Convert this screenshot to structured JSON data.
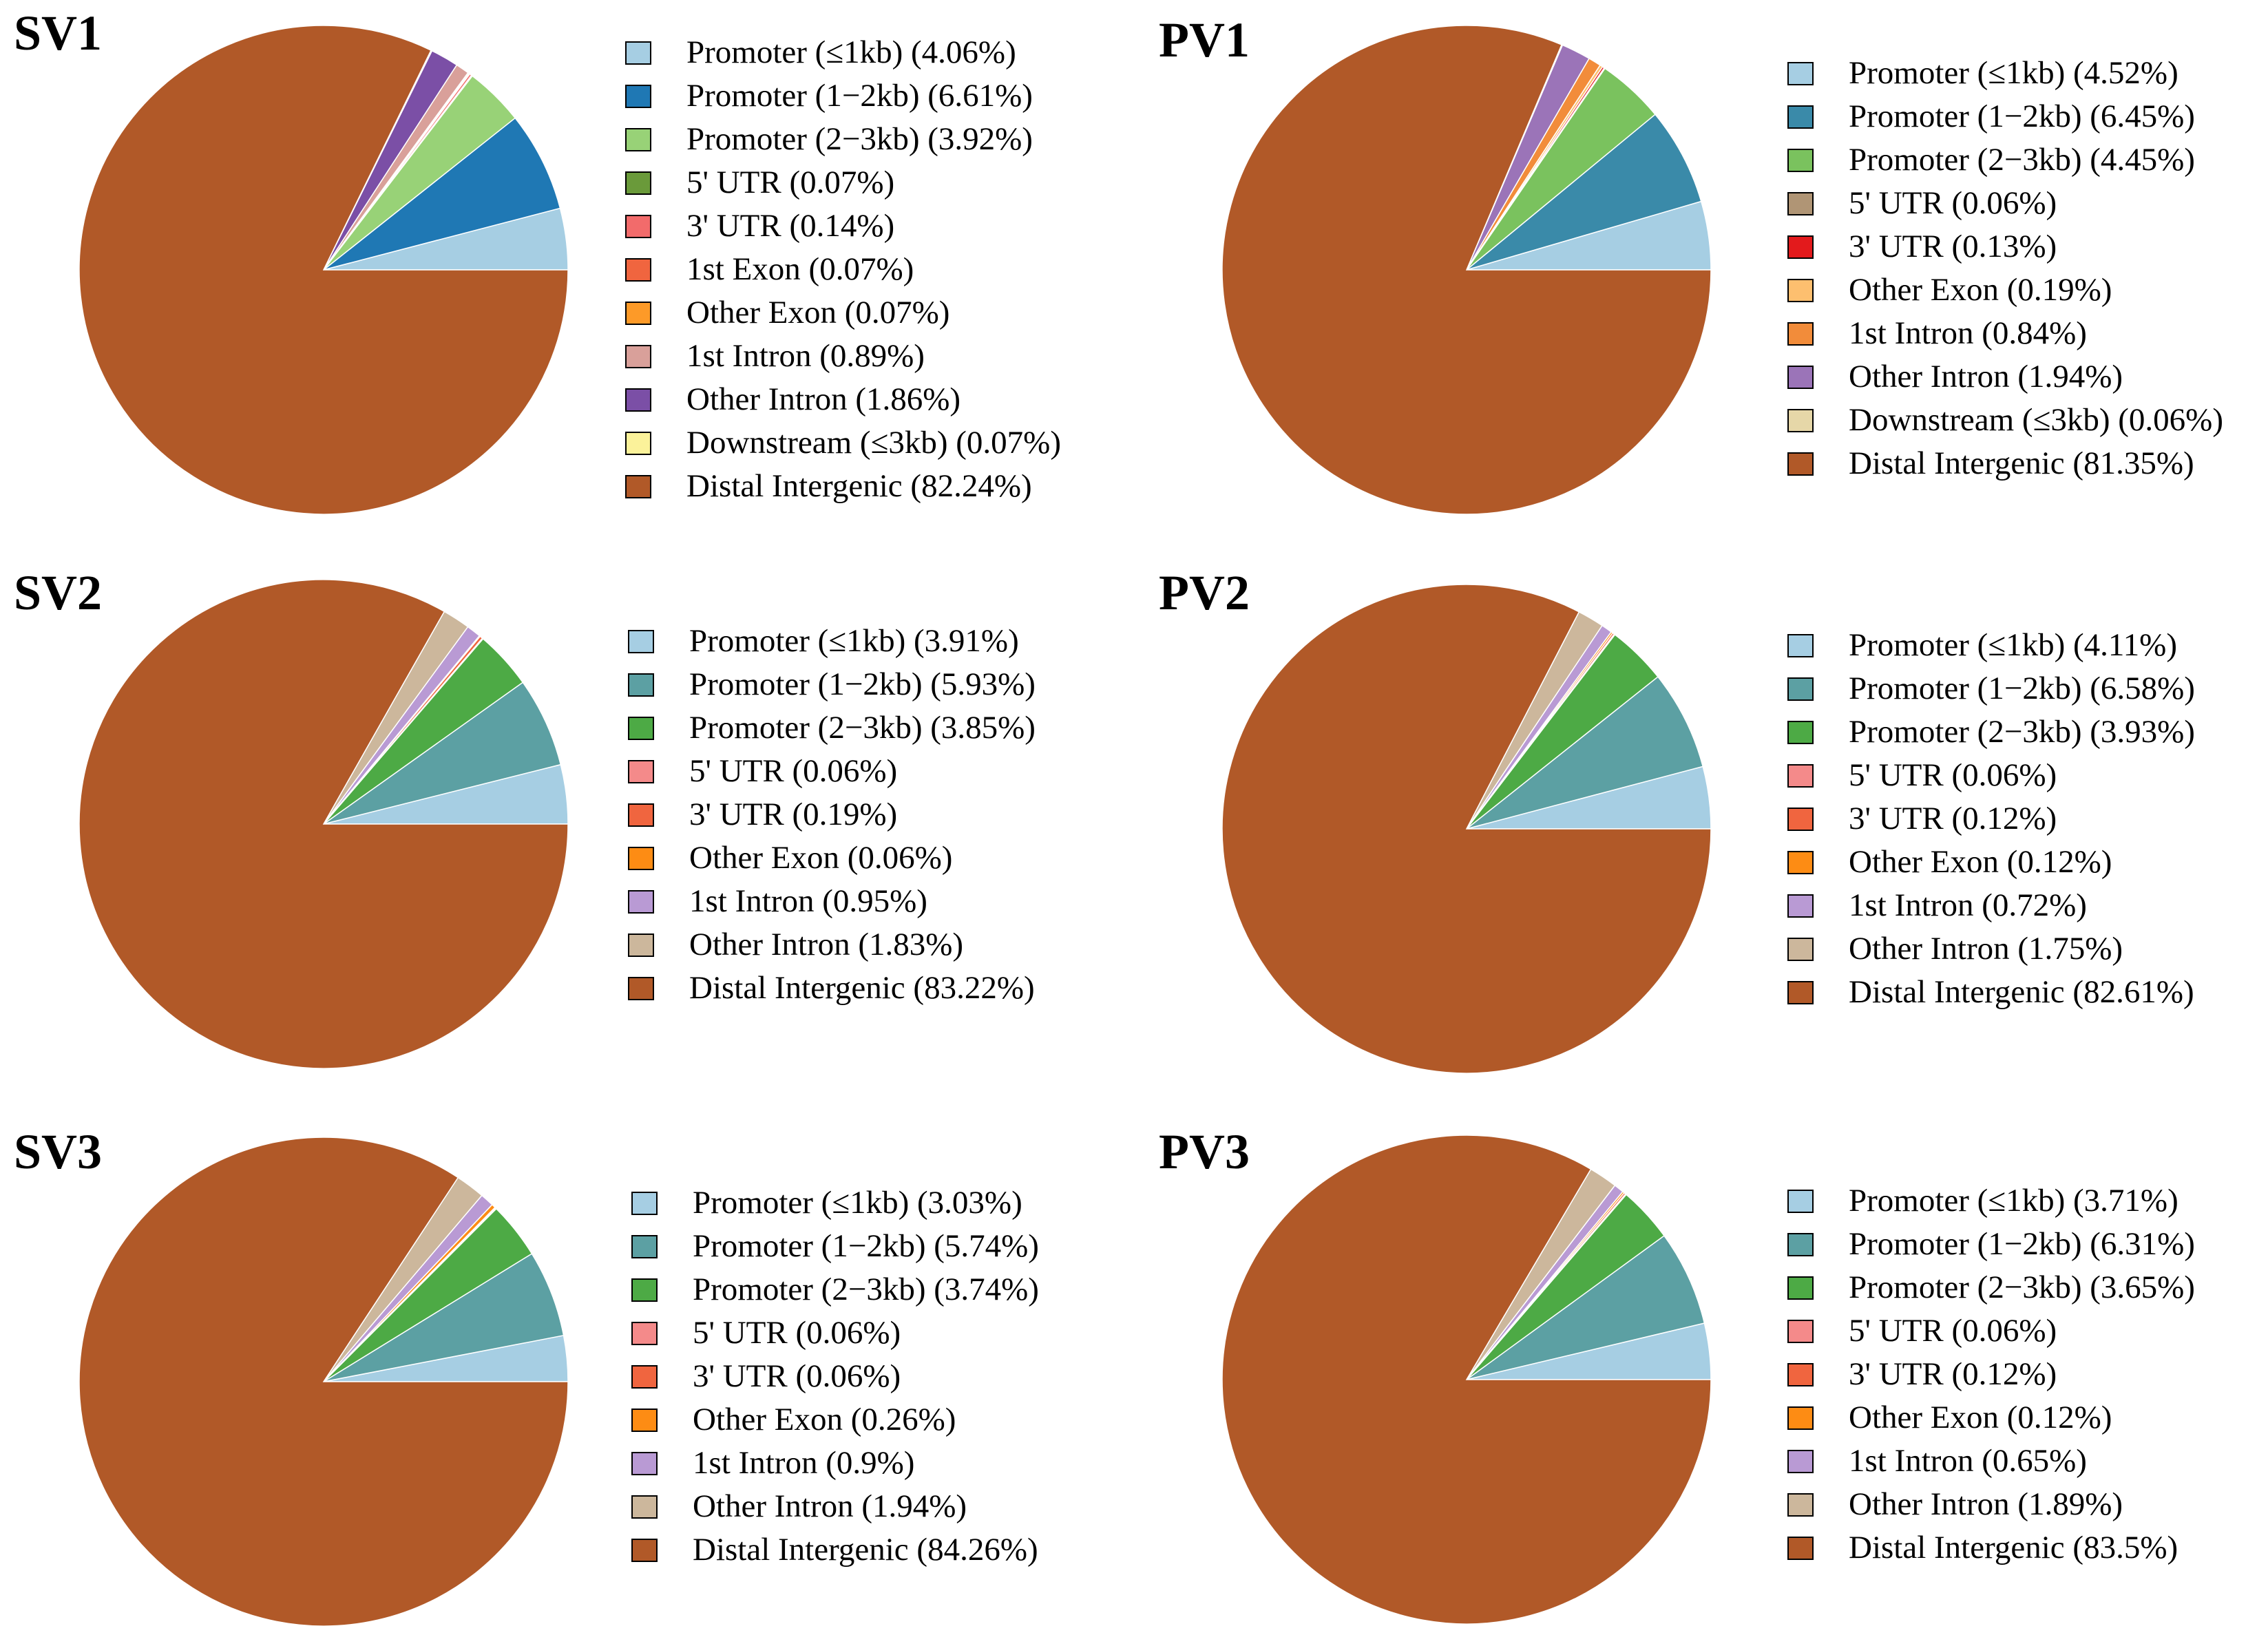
{
  "chart_data": [
    {
      "type": "pie",
      "title": "SV1",
      "slices": [
        {
          "label": "Promoter (≤1kb) (4.06%)",
          "name": "Promoter (≤1kb)",
          "value": 4.06,
          "color": "#a6cee3"
        },
        {
          "label": "Promoter (1−2kb) (6.61%)",
          "name": "Promoter (1−2kb)",
          "value": 6.61,
          "color": "#1f78b4"
        },
        {
          "label": "Promoter (2−3kb) (3.92%)",
          "name": "Promoter (2−3kb)",
          "value": 3.92,
          "color": "#98d277"
        },
        {
          "label": "5' UTR (0.07%)",
          "name": "5' UTR",
          "value": 0.07,
          "color": "#6a9a3a"
        },
        {
          "label": "3' UTR (0.14%)",
          "name": "3' UTR",
          "value": 0.14,
          "color": "#f26b6b"
        },
        {
          "label": "1st Exon (0.07%)",
          "name": "1st Exon",
          "value": 0.07,
          "color": "#f0653f"
        },
        {
          "label": "Other Exon (0.07%)",
          "name": "Other Exon",
          "value": 0.07,
          "color": "#fd9a28"
        },
        {
          "label": "1st Intron (0.89%)",
          "name": "1st Intron",
          "value": 0.89,
          "color": "#d9a09a"
        },
        {
          "label": "Other Intron (1.86%)",
          "name": "Other Intron",
          "value": 1.86,
          "color": "#7b4fa6"
        },
        {
          "label": "Downstream (≤3kb) (0.07%)",
          "name": "Downstream (≤3kb)",
          "value": 0.07,
          "color": "#fbf29a"
        },
        {
          "label": "Distal Intergenic (82.24%)",
          "name": "Distal Intergenic",
          "value": 82.24,
          "color": "#b15928"
        }
      ]
    },
    {
      "type": "pie",
      "title": "PV1",
      "slices": [
        {
          "label": "Promoter (≤1kb) (4.52%)",
          "name": "Promoter (≤1kb)",
          "value": 4.52,
          "color": "#a6cee3"
        },
        {
          "label": "Promoter (1−2kb) (6.45%)",
          "name": "Promoter (1−2kb)",
          "value": 6.45,
          "color": "#3a8aa9"
        },
        {
          "label": "Promoter (2−3kb) (4.45%)",
          "name": "Promoter (2−3kb)",
          "value": 4.45,
          "color": "#7ac25e"
        },
        {
          "label": "5' UTR (0.06%)",
          "name": "5' UTR",
          "value": 0.06,
          "color": "#b09575"
        },
        {
          "label": "3' UTR (0.13%)",
          "name": "3' UTR",
          "value": 0.13,
          "color": "#e31a1c"
        },
        {
          "label": "Other Exon (0.19%)",
          "name": "Other Exon",
          "value": 0.19,
          "color": "#fdbf6f"
        },
        {
          "label": "1st Intron (0.84%)",
          "name": "1st Intron",
          "value": 0.84,
          "color": "#f28c3a"
        },
        {
          "label": "Other Intron (1.94%)",
          "name": "Other Intron",
          "value": 1.94,
          "color": "#9b74b8"
        },
        {
          "label": "Downstream (≤3kb) (0.06%)",
          "name": "Downstream (≤3kb)",
          "value": 0.06,
          "color": "#e6d7a8"
        },
        {
          "label": "Distal Intergenic (81.35%)",
          "name": "Distal Intergenic",
          "value": 81.35,
          "color": "#b15928"
        }
      ]
    },
    {
      "type": "pie",
      "title": "SV2",
      "slices": [
        {
          "label": "Promoter (≤1kb) (3.91%)",
          "name": "Promoter (≤1kb)",
          "value": 3.91,
          "color": "#a6cee3"
        },
        {
          "label": "Promoter (1−2kb) (5.93%)",
          "name": "Promoter (1−2kb)",
          "value": 5.93,
          "color": "#5ca0a3"
        },
        {
          "label": "Promoter (2−3kb) (3.85%)",
          "name": "Promoter (2−3kb)",
          "value": 3.85,
          "color": "#4daa45"
        },
        {
          "label": "5' UTR (0.06%)",
          "name": "5' UTR",
          "value": 0.06,
          "color": "#f48a8a"
        },
        {
          "label": "3' UTR (0.19%)",
          "name": "3' UTR",
          "value": 0.19,
          "color": "#f0653f"
        },
        {
          "label": "Other Exon (0.06%)",
          "name": "Other Exon",
          "value": 0.06,
          "color": "#fd8c14"
        },
        {
          "label": "1st Intron (0.95%)",
          "name": "1st Intron",
          "value": 0.95,
          "color": "#b99ad4"
        },
        {
          "label": "Other Intron (1.83%)",
          "name": "Other Intron",
          "value": 1.83,
          "color": "#ccb79c"
        },
        {
          "label": "Distal Intergenic (83.22%)",
          "name": "Distal Intergenic",
          "value": 83.22,
          "color": "#b15928"
        }
      ]
    },
    {
      "type": "pie",
      "title": "PV2",
      "slices": [
        {
          "label": "Promoter (≤1kb) (4.11%)",
          "name": "Promoter (≤1kb)",
          "value": 4.11,
          "color": "#a6cee3"
        },
        {
          "label": "Promoter (1−2kb) (6.58%)",
          "name": "Promoter (1−2kb)",
          "value": 6.58,
          "color": "#5ca0a3"
        },
        {
          "label": "Promoter (2−3kb) (3.93%)",
          "name": "Promoter (2−3kb)",
          "value": 3.93,
          "color": "#4daa45"
        },
        {
          "label": "5' UTR (0.06%)",
          "name": "5' UTR",
          "value": 0.06,
          "color": "#f48a8a"
        },
        {
          "label": "3' UTR (0.12%)",
          "name": "3' UTR",
          "value": 0.12,
          "color": "#f0653f"
        },
        {
          "label": "Other Exon (0.12%)",
          "name": "Other Exon",
          "value": 0.12,
          "color": "#fd8c14"
        },
        {
          "label": "1st Intron (0.72%)",
          "name": "1st Intron",
          "value": 0.72,
          "color": "#b99ad4"
        },
        {
          "label": "Other Intron (1.75%)",
          "name": "Other Intron",
          "value": 1.75,
          "color": "#ccb79c"
        },
        {
          "label": "Distal Intergenic (82.61%)",
          "name": "Distal Intergenic",
          "value": 82.61,
          "color": "#b15928"
        }
      ]
    },
    {
      "type": "pie",
      "title": "SV3",
      "slices": [
        {
          "label": "Promoter (≤1kb) (3.03%)",
          "name": "Promoter (≤1kb)",
          "value": 3.03,
          "color": "#a6cee3"
        },
        {
          "label": "Promoter (1−2kb) (5.74%)",
          "name": "Promoter (1−2kb)",
          "value": 5.74,
          "color": "#5ca0a3"
        },
        {
          "label": "Promoter (2−3kb) (3.74%)",
          "name": "Promoter (2−3kb)",
          "value": 3.74,
          "color": "#4daa45"
        },
        {
          "label": "5' UTR (0.06%)",
          "name": "5' UTR",
          "value": 0.06,
          "color": "#f48a8a"
        },
        {
          "label": "3' UTR (0.06%)",
          "name": "3' UTR",
          "value": 0.06,
          "color": "#f0653f"
        },
        {
          "label": "Other Exon (0.26%)",
          "name": "Other Exon",
          "value": 0.26,
          "color": "#fd8c14"
        },
        {
          "label": "1st Intron (0.9%)",
          "name": "1st Intron",
          "value": 0.9,
          "color": "#b99ad4"
        },
        {
          "label": "Other Intron (1.94%)",
          "name": "Other Intron",
          "value": 1.94,
          "color": "#ccb79c"
        },
        {
          "label": "Distal Intergenic (84.26%)",
          "name": "Distal Intergenic",
          "value": 84.26,
          "color": "#b15928"
        }
      ]
    },
    {
      "type": "pie",
      "title": "PV3",
      "slices": [
        {
          "label": "Promoter (≤1kb) (3.71%)",
          "name": "Promoter (≤1kb)",
          "value": 3.71,
          "color": "#a6cee3"
        },
        {
          "label": "Promoter (1−2kb) (6.31%)",
          "name": "Promoter (1−2kb)",
          "value": 6.31,
          "color": "#5ca0a3"
        },
        {
          "label": "Promoter (2−3kb) (3.65%)",
          "name": "Promoter (2−3kb)",
          "value": 3.65,
          "color": "#4daa45"
        },
        {
          "label": "5' UTR (0.06%)",
          "name": "5' UTR",
          "value": 0.06,
          "color": "#f48a8a"
        },
        {
          "label": "3' UTR (0.12%)",
          "name": "3' UTR",
          "value": 0.12,
          "color": "#f0653f"
        },
        {
          "label": "Other Exon (0.12%)",
          "name": "Other Exon",
          "value": 0.12,
          "color": "#fd8c14"
        },
        {
          "label": "1st Intron (0.65%)",
          "name": "1st Intron",
          "value": 0.65,
          "color": "#b99ad4"
        },
        {
          "label": "Other Intron (1.89%)",
          "name": "Other Intron",
          "value": 1.89,
          "color": "#ccb79c"
        },
        {
          "label": "Distal Intergenic (83.5%)",
          "name": "Distal Intergenic",
          "value": 83.5,
          "color": "#b15928"
        }
      ]
    }
  ]
}
